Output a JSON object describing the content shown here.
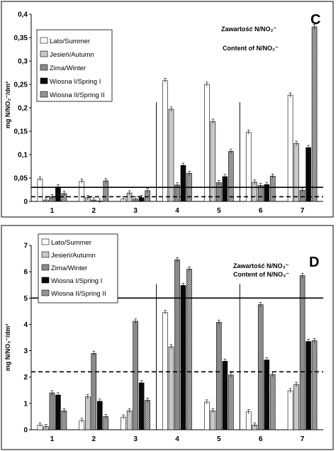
{
  "series_styles": [
    {
      "fill": "#ffffff"
    },
    {
      "fill": "#c8c8c8"
    },
    {
      "fill": "#8a8a8a"
    },
    {
      "fill": "#0a0a0a"
    },
    {
      "fill": "url(#hatch)"
    }
  ],
  "chart_data": [
    {
      "type": "bar",
      "panel": "C",
      "annotation": [
        "Zawartość N/NO₂⁻",
        "Content of N/NO₂⁻"
      ],
      "ylabel": "mg N/NO₂⁻/dm³",
      "ylim": [
        0,
        0.4
      ],
      "yticks": [
        "0",
        "0,05",
        "0,1",
        "0,15",
        "0,2",
        "0,25",
        "0,3",
        "0,35",
        "0,4"
      ],
      "categories": [
        "1",
        "2",
        "3",
        "4",
        "5",
        "6",
        "7"
      ],
      "series": [
        {
          "name": "Lato/Summer",
          "values": [
            0.048,
            0.043,
            0.005,
            0.258,
            0.25,
            0.148,
            0.227
          ]
        },
        {
          "name": "Jesień/Autumn",
          "values": [
            0.003,
            0.008,
            0.018,
            0.197,
            0.171,
            0.041,
            0.124
          ]
        },
        {
          "name": "Zima/Winter",
          "values": [
            0.01,
            0.003,
            0.005,
            0.035,
            0.04,
            0.034,
            0.024
          ]
        },
        {
          "name": "Wiosna I/Spring I",
          "values": [
            0.031,
            0.001,
            0.008,
            0.077,
            0.053,
            0.036,
            0.115
          ]
        },
        {
          "name": "Wiosna II/Spring II",
          "values": [
            0.017,
            0.044,
            0.023,
            0.06,
            0.107,
            0.054,
            0.373
          ]
        }
      ],
      "reference_lines": [
        {
          "style": "solid",
          "value": 0.03
        },
        {
          "style": "dashed",
          "value": 0.01
        }
      ],
      "section_dividers_after_categories": [
        "3",
        "5"
      ]
    },
    {
      "type": "bar",
      "panel": "D",
      "annotation": [
        "Zawartość N/NO₃⁻",
        "Content of N/NO₃⁻"
      ],
      "ylabel": "mg N/NO₃⁻/dm³",
      "ylim": [
        0,
        7
      ],
      "yticks": [
        "0",
        "1",
        "2",
        "3",
        "4",
        "5",
        "6",
        "7"
      ],
      "categories": [
        "1",
        "2",
        "3",
        "4",
        "5",
        "6",
        "7"
      ],
      "series": [
        {
          "name": "Lato/Summer",
          "values": [
            0.18,
            0.35,
            0.48,
            4.45,
            1.05,
            0.68,
            1.48
          ]
        },
        {
          "name": "Jesień/Autumn",
          "values": [
            0.12,
            1.25,
            0.72,
            3.15,
            0.72,
            0.18,
            1.72
          ]
        },
        {
          "name": "Zima/Winter",
          "values": [
            1.4,
            2.9,
            4.12,
            6.45,
            4.08,
            4.75,
            5.85
          ]
        },
        {
          "name": "Wiosna I/Spring I",
          "values": [
            1.32,
            1.08,
            1.78,
            5.48,
            2.6,
            2.65,
            3.35
          ]
        },
        {
          "name": "Wiosna II/Spring II",
          "values": [
            0.72,
            0.5,
            1.12,
            6.1,
            2.08,
            2.1,
            3.38
          ]
        }
      ],
      "reference_lines": [
        {
          "style": "solid",
          "value": 5.0
        },
        {
          "style": "dashed",
          "value": 2.2
        }
      ],
      "section_dividers_after_categories": [
        "3",
        "5"
      ]
    }
  ]
}
